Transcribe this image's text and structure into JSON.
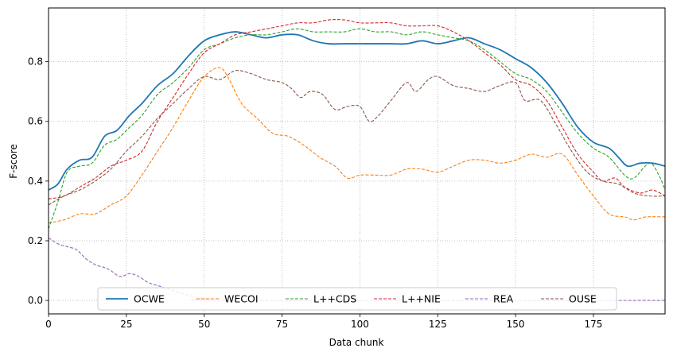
{
  "chart_data": {
    "type": "line",
    "title": "",
    "xlabel": "Data chunk",
    "ylabel": "F-score",
    "xlim": [
      0,
      198
    ],
    "ylim": [
      -0.045,
      0.98
    ],
    "xticks": [
      0,
      25,
      50,
      75,
      100,
      125,
      150,
      175
    ],
    "yticks": [
      0.0,
      0.2,
      0.4,
      0.6,
      0.8
    ],
    "grid": true,
    "legend_position": "lower center",
    "series": [
      {
        "name": "OCWE",
        "color": "#1f77b4",
        "style": "solid",
        "points": [
          [
            0,
            0.37
          ],
          [
            3,
            0.39
          ],
          [
            6,
            0.44
          ],
          [
            10,
            0.47
          ],
          [
            14,
            0.48
          ],
          [
            18,
            0.55
          ],
          [
            22,
            0.57
          ],
          [
            26,
            0.62
          ],
          [
            30,
            0.66
          ],
          [
            35,
            0.72
          ],
          [
            40,
            0.76
          ],
          [
            45,
            0.82
          ],
          [
            50,
            0.87
          ],
          [
            55,
            0.89
          ],
          [
            60,
            0.9
          ],
          [
            65,
            0.89
          ],
          [
            70,
            0.88
          ],
          [
            75,
            0.89
          ],
          [
            80,
            0.89
          ],
          [
            85,
            0.87
          ],
          [
            90,
            0.86
          ],
          [
            95,
            0.86
          ],
          [
            100,
            0.86
          ],
          [
            105,
            0.86
          ],
          [
            110,
            0.86
          ],
          [
            115,
            0.86
          ],
          [
            120,
            0.87
          ],
          [
            125,
            0.86
          ],
          [
            130,
            0.87
          ],
          [
            135,
            0.88
          ],
          [
            140,
            0.86
          ],
          [
            145,
            0.84
          ],
          [
            150,
            0.81
          ],
          [
            155,
            0.78
          ],
          [
            160,
            0.73
          ],
          [
            165,
            0.66
          ],
          [
            170,
            0.58
          ],
          [
            175,
            0.53
          ],
          [
            180,
            0.51
          ],
          [
            183,
            0.48
          ],
          [
            186,
            0.45
          ],
          [
            190,
            0.46
          ],
          [
            194,
            0.46
          ],
          [
            198,
            0.45
          ]
        ]
      },
      {
        "name": "WECOI",
        "color": "#ff7f0e",
        "style": "dashed",
        "points": [
          [
            0,
            0.26
          ],
          [
            5,
            0.27
          ],
          [
            10,
            0.29
          ],
          [
            15,
            0.29
          ],
          [
            20,
            0.32
          ],
          [
            25,
            0.35
          ],
          [
            30,
            0.42
          ],
          [
            35,
            0.5
          ],
          [
            40,
            0.58
          ],
          [
            45,
            0.67
          ],
          [
            50,
            0.75
          ],
          [
            55,
            0.78
          ],
          [
            58,
            0.74
          ],
          [
            62,
            0.66
          ],
          [
            67,
            0.61
          ],
          [
            72,
            0.56
          ],
          [
            77,
            0.55
          ],
          [
            82,
            0.52
          ],
          [
            87,
            0.48
          ],
          [
            92,
            0.45
          ],
          [
            96,
            0.41
          ],
          [
            100,
            0.42
          ],
          [
            105,
            0.42
          ],
          [
            110,
            0.42
          ],
          [
            115,
            0.44
          ],
          [
            120,
            0.44
          ],
          [
            125,
            0.43
          ],
          [
            130,
            0.45
          ],
          [
            135,
            0.47
          ],
          [
            140,
            0.47
          ],
          [
            145,
            0.46
          ],
          [
            150,
            0.47
          ],
          [
            155,
            0.49
          ],
          [
            160,
            0.48
          ],
          [
            165,
            0.49
          ],
          [
            170,
            0.42
          ],
          [
            175,
            0.35
          ],
          [
            180,
            0.29
          ],
          [
            185,
            0.28
          ],
          [
            188,
            0.27
          ],
          [
            192,
            0.28
          ],
          [
            198,
            0.28
          ]
        ]
      },
      {
        "name": "L++CDS",
        "color": "#2ca02c",
        "style": "dashed",
        "points": [
          [
            0,
            0.24
          ],
          [
            3,
            0.33
          ],
          [
            6,
            0.43
          ],
          [
            10,
            0.45
          ],
          [
            14,
            0.46
          ],
          [
            18,
            0.52
          ],
          [
            22,
            0.54
          ],
          [
            26,
            0.58
          ],
          [
            30,
            0.62
          ],
          [
            35,
            0.69
          ],
          [
            40,
            0.73
          ],
          [
            45,
            0.78
          ],
          [
            50,
            0.84
          ],
          [
            55,
            0.86
          ],
          [
            60,
            0.88
          ],
          [
            65,
            0.89
          ],
          [
            70,
            0.89
          ],
          [
            75,
            0.9
          ],
          [
            80,
            0.91
          ],
          [
            85,
            0.9
          ],
          [
            90,
            0.9
          ],
          [
            95,
            0.9
          ],
          [
            100,
            0.91
          ],
          [
            105,
            0.9
          ],
          [
            110,
            0.9
          ],
          [
            115,
            0.89
          ],
          [
            120,
            0.9
          ],
          [
            125,
            0.89
          ],
          [
            130,
            0.88
          ],
          [
            135,
            0.87
          ],
          [
            140,
            0.84
          ],
          [
            145,
            0.8
          ],
          [
            150,
            0.76
          ],
          [
            155,
            0.74
          ],
          [
            160,
            0.7
          ],
          [
            165,
            0.63
          ],
          [
            170,
            0.56
          ],
          [
            175,
            0.51
          ],
          [
            180,
            0.48
          ],
          [
            185,
            0.42
          ],
          [
            188,
            0.41
          ],
          [
            193,
            0.46
          ],
          [
            196,
            0.42
          ],
          [
            198,
            0.37
          ]
        ]
      },
      {
        "name": "L++NIE",
        "color": "#d62728",
        "style": "dashed",
        "points": [
          [
            0,
            0.34
          ],
          [
            5,
            0.35
          ],
          [
            10,
            0.38
          ],
          [
            15,
            0.41
          ],
          [
            20,
            0.45
          ],
          [
            25,
            0.47
          ],
          [
            30,
            0.5
          ],
          [
            35,
            0.6
          ],
          [
            40,
            0.68
          ],
          [
            45,
            0.76
          ],
          [
            50,
            0.83
          ],
          [
            55,
            0.86
          ],
          [
            60,
            0.89
          ],
          [
            65,
            0.9
          ],
          [
            70,
            0.91
          ],
          [
            75,
            0.92
          ],
          [
            80,
            0.93
          ],
          [
            85,
            0.93
          ],
          [
            90,
            0.94
          ],
          [
            95,
            0.94
          ],
          [
            100,
            0.93
          ],
          [
            105,
            0.93
          ],
          [
            110,
            0.93
          ],
          [
            115,
            0.92
          ],
          [
            120,
            0.92
          ],
          [
            125,
            0.92
          ],
          [
            130,
            0.9
          ],
          [
            135,
            0.87
          ],
          [
            140,
            0.83
          ],
          [
            145,
            0.79
          ],
          [
            150,
            0.74
          ],
          [
            155,
            0.72
          ],
          [
            160,
            0.67
          ],
          [
            165,
            0.58
          ],
          [
            170,
            0.49
          ],
          [
            175,
            0.43
          ],
          [
            178,
            0.4
          ],
          [
            182,
            0.41
          ],
          [
            185,
            0.38
          ],
          [
            190,
            0.36
          ],
          [
            194,
            0.37
          ],
          [
            198,
            0.35
          ]
        ]
      },
      {
        "name": "REA",
        "color": "#9467bd",
        "style": "dashed",
        "points": [
          [
            0,
            0.21
          ],
          [
            3,
            0.19
          ],
          [
            6,
            0.18
          ],
          [
            9,
            0.17
          ],
          [
            12,
            0.14
          ],
          [
            15,
            0.12
          ],
          [
            18,
            0.11
          ],
          [
            20,
            0.1
          ],
          [
            23,
            0.08
          ],
          [
            26,
            0.09
          ],
          [
            29,
            0.08
          ],
          [
            32,
            0.06
          ],
          [
            35,
            0.05
          ],
          [
            38,
            0.04
          ],
          [
            41,
            0.03
          ],
          [
            44,
            0.02
          ],
          [
            48,
            0.01
          ],
          [
            52,
            0.005
          ],
          [
            58,
            0.0
          ],
          [
            198,
            0.0
          ]
        ]
      },
      {
        "name": "OUSE",
        "color": "#8c564b",
        "style": "dashed",
        "points": [
          [
            0,
            0.32
          ],
          [
            5,
            0.35
          ],
          [
            10,
            0.37
          ],
          [
            15,
            0.4
          ],
          [
            20,
            0.44
          ],
          [
            25,
            0.5
          ],
          [
            30,
            0.55
          ],
          [
            35,
            0.61
          ],
          [
            40,
            0.66
          ],
          [
            45,
            0.71
          ],
          [
            50,
            0.75
          ],
          [
            55,
            0.74
          ],
          [
            60,
            0.77
          ],
          [
            65,
            0.76
          ],
          [
            70,
            0.74
          ],
          [
            75,
            0.73
          ],
          [
            78,
            0.71
          ],
          [
            81,
            0.68
          ],
          [
            84,
            0.7
          ],
          [
            88,
            0.69
          ],
          [
            92,
            0.64
          ],
          [
            96,
            0.65
          ],
          [
            100,
            0.65
          ],
          [
            103,
            0.6
          ],
          [
            106,
            0.62
          ],
          [
            110,
            0.67
          ],
          [
            115,
            0.73
          ],
          [
            118,
            0.7
          ],
          [
            122,
            0.74
          ],
          [
            125,
            0.75
          ],
          [
            130,
            0.72
          ],
          [
            135,
            0.71
          ],
          [
            140,
            0.7
          ],
          [
            145,
            0.72
          ],
          [
            150,
            0.73
          ],
          [
            153,
            0.67
          ],
          [
            158,
            0.67
          ],
          [
            163,
            0.59
          ],
          [
            168,
            0.5
          ],
          [
            173,
            0.43
          ],
          [
            178,
            0.4
          ],
          [
            183,
            0.39
          ],
          [
            188,
            0.36
          ],
          [
            193,
            0.35
          ],
          [
            198,
            0.35
          ]
        ]
      }
    ]
  }
}
